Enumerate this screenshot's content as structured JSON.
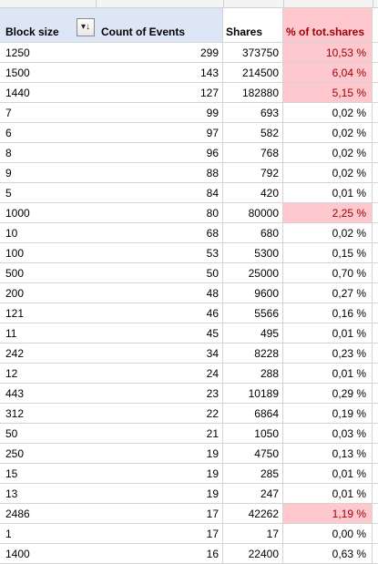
{
  "colors": {
    "header_blue": "#dce6f5",
    "highlight_fill": "#ffc7ce",
    "highlight_text": "#9c0006"
  },
  "header": {
    "block_size": "Block size",
    "filter_icon": "sort-descending-filter-icon",
    "count_of_events": "Count of Events",
    "shares": "Shares",
    "pct_tot_shares": "% of tot.shares"
  },
  "rows": [
    {
      "block": "1250",
      "count": "299",
      "shares": "373750",
      "pct": "10,53 %",
      "hl": true
    },
    {
      "block": "1500",
      "count": "143",
      "shares": "214500",
      "pct": "6,04 %",
      "hl": true
    },
    {
      "block": "1440",
      "count": "127",
      "shares": "182880",
      "pct": "5,15 %",
      "hl": true
    },
    {
      "block": "7",
      "count": "99",
      "shares": "693",
      "pct": "0,02 %",
      "hl": false
    },
    {
      "block": "6",
      "count": "97",
      "shares": "582",
      "pct": "0,02 %",
      "hl": false
    },
    {
      "block": "8",
      "count": "96",
      "shares": "768",
      "pct": "0,02 %",
      "hl": false
    },
    {
      "block": "9",
      "count": "88",
      "shares": "792",
      "pct": "0,02 %",
      "hl": false
    },
    {
      "block": "5",
      "count": "84",
      "shares": "420",
      "pct": "0,01 %",
      "hl": false
    },
    {
      "block": "1000",
      "count": "80",
      "shares": "80000",
      "pct": "2,25 %",
      "hl": true
    },
    {
      "block": "10",
      "count": "68",
      "shares": "680",
      "pct": "0,02 %",
      "hl": false
    },
    {
      "block": "100",
      "count": "53",
      "shares": "5300",
      "pct": "0,15 %",
      "hl": false
    },
    {
      "block": "500",
      "count": "50",
      "shares": "25000",
      "pct": "0,70 %",
      "hl": false
    },
    {
      "block": "200",
      "count": "48",
      "shares": "9600",
      "pct": "0,27 %",
      "hl": false
    },
    {
      "block": "121",
      "count": "46",
      "shares": "5566",
      "pct": "0,16 %",
      "hl": false
    },
    {
      "block": "11",
      "count": "45",
      "shares": "495",
      "pct": "0,01 %",
      "hl": false
    },
    {
      "block": "242",
      "count": "34",
      "shares": "8228",
      "pct": "0,23 %",
      "hl": false
    },
    {
      "block": "12",
      "count": "24",
      "shares": "288",
      "pct": "0,01 %",
      "hl": false
    },
    {
      "block": "443",
      "count": "23",
      "shares": "10189",
      "pct": "0,29 %",
      "hl": false
    },
    {
      "block": "312",
      "count": "22",
      "shares": "6864",
      "pct": "0,19 %",
      "hl": false
    },
    {
      "block": "50",
      "count": "21",
      "shares": "1050",
      "pct": "0,03 %",
      "hl": false
    },
    {
      "block": "250",
      "count": "19",
      "shares": "4750",
      "pct": "0,13 %",
      "hl": false
    },
    {
      "block": "15",
      "count": "19",
      "shares": "285",
      "pct": "0,01 %",
      "hl": false
    },
    {
      "block": "13",
      "count": "19",
      "shares": "247",
      "pct": "0,01 %",
      "hl": false
    },
    {
      "block": "2486",
      "count": "17",
      "shares": "42262",
      "pct": "1,19 %",
      "hl": true
    },
    {
      "block": "1",
      "count": "17",
      "shares": "17",
      "pct": "0,00 %",
      "hl": false
    },
    {
      "block": "1400",
      "count": "16",
      "shares": "22400",
      "pct": "0,63 %",
      "hl": false
    }
  ]
}
